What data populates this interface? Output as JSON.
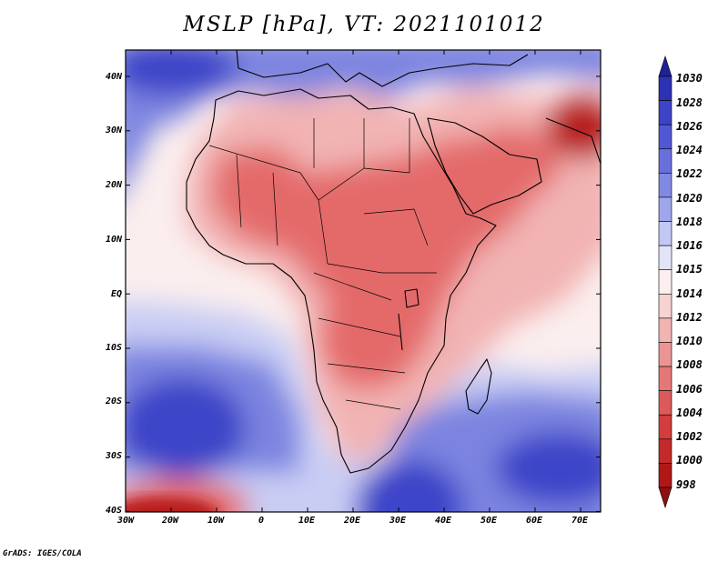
{
  "title": "MSLP [hPa], VT: 2021101012",
  "footer": "GrADS: IGES/COLA",
  "colors": {
    "ocean_north": "#3d44c8",
    "ocean_mid": "#7b84e0",
    "ocean_light": "#c9cdf4",
    "neutral": "#fbeeee",
    "land_pink": "#f2b3b3",
    "land_red": "#e46a6a",
    "deep_red": "#b81d1d",
    "coast": "#000000"
  },
  "map": {
    "lat_labels": [
      "40N",
      "30N",
      "20N",
      "10N",
      "EQ",
      "10S",
      "20S",
      "30S",
      "40S"
    ],
    "lon_labels": [
      "30W",
      "20W",
      "10W",
      "0",
      "10E",
      "20E",
      "30E",
      "40E",
      "50E",
      "60E",
      "70E"
    ]
  },
  "colorbar": {
    "labels": [
      "1030",
      "1028",
      "1026",
      "1024",
      "1022",
      "1020",
      "1018",
      "1016",
      "1015",
      "1014",
      "1012",
      "1010",
      "1008",
      "1006",
      "1004",
      "1002",
      "1000",
      "998"
    ],
    "colors": [
      "#1e2296",
      "#2d32b4",
      "#3d44c8",
      "#5258d4",
      "#6970dc",
      "#8289e4",
      "#a0a6ec",
      "#c3c7f4",
      "#e2e4fa",
      "#fbeeee",
      "#f6d2d2",
      "#f2b3b3",
      "#ec9494",
      "#e57777",
      "#dd5a5a",
      "#d23d3d",
      "#c42a2a",
      "#b01818",
      "#8e1010"
    ]
  }
}
